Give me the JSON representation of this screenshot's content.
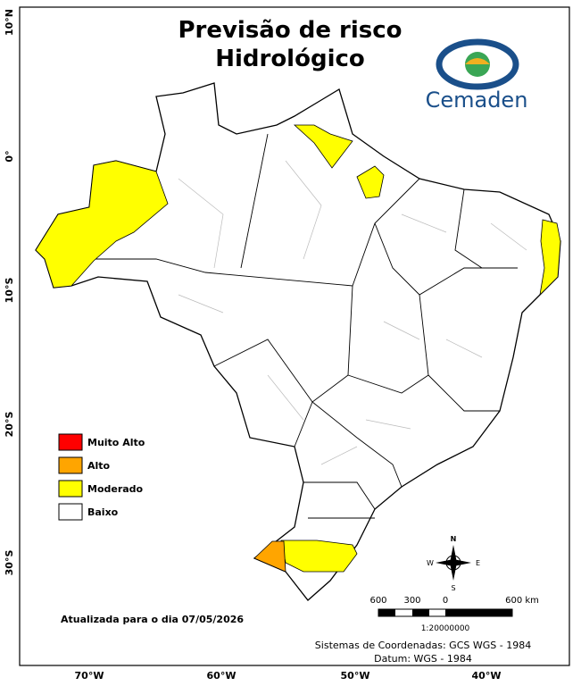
{
  "title": [
    "Previsão de risco",
    "Hidrológico"
  ],
  "logo": "Cemaden",
  "legend": [
    {
      "label": "Muito Alto",
      "color": "#ff0000"
    },
    {
      "label": "Alto",
      "color": "#ffa500"
    },
    {
      "label": "Moderado",
      "color": "#ffff00"
    },
    {
      "label": "Baixo",
      "color": "#ffffff"
    }
  ],
  "update_note": "Atualizada para o dia 07/05/2026",
  "scale": {
    "labels": [
      "600",
      "300",
      "0",
      "600 km"
    ],
    "ratio": "1:20000000"
  },
  "compass": {
    "north": "N",
    "east": "E",
    "south": "S",
    "west": "W"
  },
  "credits": [
    "Sistemas de Coordenadas: GCS WGS - 1984",
    "Datum: WGS - 1984"
  ],
  "lat_labels": [
    "10°N",
    "0°",
    "10°S",
    "20°S",
    "30°S"
  ],
  "lon_labels": [
    "70°W",
    "60°W",
    "50°W",
    "40°W"
  ]
}
